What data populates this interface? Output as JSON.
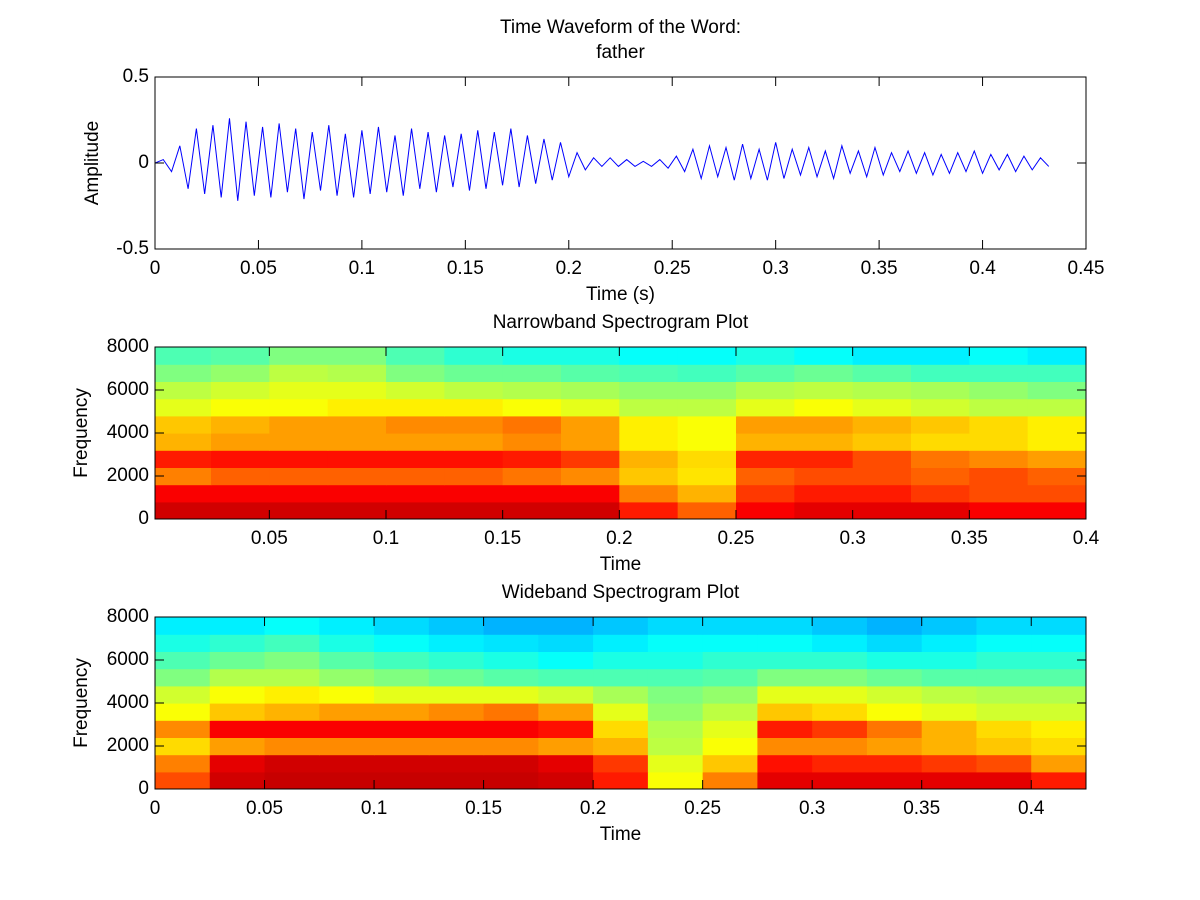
{
  "chart_data": [
    {
      "type": "line",
      "title": [
        "Time Waveform of the Word:",
        "father"
      ],
      "x_label": "Time (s)",
      "y_label": "Amplitude",
      "color": "#0000ff",
      "x": [
        0,
        0.004,
        0.008,
        0.012,
        0.016,
        0.02,
        0.024,
        0.028,
        0.032,
        0.036,
        0.04,
        0.044,
        0.048,
        0.052,
        0.056,
        0.06,
        0.064,
        0.068,
        0.072,
        0.076,
        0.08,
        0.084,
        0.088,
        0.092,
        0.096,
        0.1,
        0.104,
        0.108,
        0.112,
        0.116,
        0.12,
        0.124,
        0.128,
        0.132,
        0.136,
        0.14,
        0.144,
        0.148,
        0.152,
        0.156,
        0.16,
        0.164,
        0.168,
        0.172,
        0.176,
        0.18,
        0.184,
        0.188,
        0.192,
        0.196,
        0.2,
        0.204,
        0.208,
        0.212,
        0.216,
        0.22,
        0.224,
        0.228,
        0.232,
        0.236,
        0.24,
        0.244,
        0.248,
        0.252,
        0.256,
        0.26,
        0.264,
        0.268,
        0.272,
        0.276,
        0.28,
        0.284,
        0.288,
        0.292,
        0.296,
        0.3,
        0.304,
        0.308,
        0.312,
        0.316,
        0.32,
        0.324,
        0.328,
        0.332,
        0.336,
        0.34,
        0.344,
        0.348,
        0.352,
        0.356,
        0.36,
        0.364,
        0.368,
        0.372,
        0.376,
        0.38,
        0.384,
        0.388,
        0.392,
        0.396,
        0.4,
        0.404,
        0.408,
        0.412,
        0.416,
        0.42,
        0.424,
        0.428,
        0.432
      ],
      "values": [
        0,
        0.02,
        -0.05,
        0.1,
        -0.15,
        0.2,
        -0.18,
        0.22,
        -0.2,
        0.26,
        -0.22,
        0.24,
        -0.19,
        0.21,
        -0.2,
        0.23,
        -0.17,
        0.2,
        -0.21,
        0.18,
        -0.16,
        0.22,
        -0.19,
        0.17,
        -0.2,
        0.19,
        -0.18,
        0.21,
        -0.17,
        0.16,
        -0.19,
        0.2,
        -0.15,
        0.18,
        -0.17,
        0.16,
        -0.14,
        0.17,
        -0.16,
        0.19,
        -0.15,
        0.18,
        -0.13,
        0.2,
        -0.14,
        0.16,
        -0.12,
        0.14,
        -0.1,
        0.12,
        -0.08,
        0.06,
        -0.04,
        0.03,
        -0.02,
        0.03,
        -0.02,
        0.02,
        -0.02,
        0.01,
        -0.02,
        0.02,
        -0.03,
        0.04,
        -0.05,
        0.08,
        -0.09,
        0.1,
        -0.08,
        0.09,
        -0.1,
        0.11,
        -0.09,
        0.08,
        -0.1,
        0.12,
        -0.09,
        0.08,
        -0.07,
        0.09,
        -0.08,
        0.07,
        -0.09,
        0.1,
        -0.06,
        0.07,
        -0.08,
        0.09,
        -0.07,
        0.06,
        -0.05,
        0.07,
        -0.06,
        0.06,
        -0.07,
        0.05,
        -0.06,
        0.06,
        -0.05,
        0.07,
        -0.06,
        0.05,
        -0.04,
        0.05,
        -0.05,
        0.04,
        -0.04,
        0.03,
        -0.02
      ],
      "xlim": [
        0,
        0.45
      ],
      "xticks": [
        0,
        0.05,
        0.1,
        0.15,
        0.2,
        0.25,
        0.3,
        0.35,
        0.4,
        0.45
      ],
      "ylim": [
        -0.5,
        0.5
      ],
      "yticks": [
        -0.5,
        0,
        0.5
      ]
    },
    {
      "type": "heatmap",
      "title": [
        "Narrowband Spectrogram Plot"
      ],
      "x_label": "Time",
      "y_label": "Frequency",
      "colormap": "jet",
      "zlim": [
        0,
        1
      ],
      "xbins": [
        0,
        0.025,
        0.05,
        0.075,
        0.1,
        0.125,
        0.15,
        0.175,
        0.2,
        0.225,
        0.25,
        0.275,
        0.3,
        0.325,
        0.35,
        0.375,
        0.4
      ],
      "ybins": [
        0,
        800,
        1600,
        2400,
        3200,
        4000,
        4800,
        5600,
        6400,
        7200,
        8000
      ],
      "z": [
        [
          0.92,
          0.92,
          0.92,
          0.92,
          0.92,
          0.92,
          0.92,
          0.92,
          0.85,
          0.78,
          0.88,
          0.9,
          0.9,
          0.9,
          0.88,
          0.88
        ],
        [
          0.88,
          0.88,
          0.88,
          0.88,
          0.88,
          0.88,
          0.88,
          0.88,
          0.75,
          0.7,
          0.82,
          0.85,
          0.85,
          0.82,
          0.8,
          0.8
        ],
        [
          0.75,
          0.78,
          0.78,
          0.78,
          0.78,
          0.78,
          0.76,
          0.74,
          0.68,
          0.65,
          0.78,
          0.8,
          0.8,
          0.78,
          0.8,
          0.78
        ],
        [
          0.85,
          0.86,
          0.86,
          0.86,
          0.86,
          0.86,
          0.85,
          0.82,
          0.7,
          0.66,
          0.84,
          0.84,
          0.8,
          0.76,
          0.74,
          0.72
        ],
        [
          0.7,
          0.72,
          0.72,
          0.72,
          0.72,
          0.72,
          0.74,
          0.72,
          0.64,
          0.62,
          0.7,
          0.7,
          0.68,
          0.66,
          0.66,
          0.64
        ],
        [
          0.68,
          0.7,
          0.72,
          0.72,
          0.74,
          0.74,
          0.76,
          0.72,
          0.64,
          0.62,
          0.72,
          0.72,
          0.7,
          0.68,
          0.66,
          0.64
        ],
        [
          0.6,
          0.62,
          0.62,
          0.64,
          0.64,
          0.64,
          0.62,
          0.6,
          0.56,
          0.56,
          0.6,
          0.62,
          0.6,
          0.58,
          0.56,
          0.56
        ],
        [
          0.56,
          0.58,
          0.6,
          0.6,
          0.58,
          0.56,
          0.55,
          0.54,
          0.52,
          0.52,
          0.55,
          0.56,
          0.55,
          0.54,
          0.52,
          0.5
        ],
        [
          0.5,
          0.52,
          0.56,
          0.55,
          0.5,
          0.48,
          0.48,
          0.46,
          0.45,
          0.44,
          0.46,
          0.48,
          0.46,
          0.44,
          0.44,
          0.44
        ],
        [
          0.45,
          0.46,
          0.5,
          0.5,
          0.45,
          0.42,
          0.4,
          0.4,
          0.38,
          0.38,
          0.4,
          0.38,
          0.36,
          0.36,
          0.38,
          0.36
        ]
      ],
      "xlim": [
        0.001,
        0.4
      ],
      "xticks": [
        0.05,
        0.1,
        0.15,
        0.2,
        0.25,
        0.3,
        0.35,
        0.4
      ],
      "ylim": [
        0,
        8000
      ],
      "yticks": [
        0,
        2000,
        4000,
        6000,
        8000
      ]
    },
    {
      "type": "heatmap",
      "title": [
        "Wideband Spectrogram Plot"
      ],
      "x_label": "Time",
      "y_label": "Frequency",
      "colormap": "jet",
      "zlim": [
        0,
        1
      ],
      "xbins": [
        0,
        0.025,
        0.05,
        0.075,
        0.1,
        0.125,
        0.15,
        0.175,
        0.2,
        0.225,
        0.25,
        0.275,
        0.3,
        0.325,
        0.35,
        0.375,
        0.4,
        0.425
      ],
      "ybins": [
        0,
        800,
        1600,
        2400,
        3200,
        4000,
        4800,
        5600,
        6400,
        7200,
        8000
      ],
      "z": [
        [
          0.8,
          0.92,
          0.93,
          0.93,
          0.93,
          0.93,
          0.93,
          0.92,
          0.85,
          0.62,
          0.75,
          0.9,
          0.9,
          0.9,
          0.9,
          0.9,
          0.85
        ],
        [
          0.75,
          0.9,
          0.92,
          0.92,
          0.92,
          0.92,
          0.92,
          0.9,
          0.82,
          0.6,
          0.68,
          0.86,
          0.84,
          0.84,
          0.82,
          0.8,
          0.72
        ],
        [
          0.66,
          0.72,
          0.74,
          0.74,
          0.74,
          0.74,
          0.74,
          0.72,
          0.7,
          0.56,
          0.62,
          0.74,
          0.74,
          0.72,
          0.7,
          0.68,
          0.66
        ],
        [
          0.74,
          0.88,
          0.88,
          0.88,
          0.88,
          0.88,
          0.88,
          0.86,
          0.66,
          0.55,
          0.6,
          0.85,
          0.82,
          0.76,
          0.7,
          0.66,
          0.64
        ],
        [
          0.62,
          0.68,
          0.7,
          0.72,
          0.72,
          0.74,
          0.76,
          0.72,
          0.6,
          0.52,
          0.56,
          0.68,
          0.66,
          0.62,
          0.6,
          0.58,
          0.58
        ],
        [
          0.58,
          0.62,
          0.64,
          0.62,
          0.6,
          0.6,
          0.6,
          0.58,
          0.54,
          0.5,
          0.52,
          0.6,
          0.6,
          0.58,
          0.56,
          0.55,
          0.55
        ],
        [
          0.5,
          0.55,
          0.55,
          0.52,
          0.5,
          0.48,
          0.46,
          0.45,
          0.45,
          0.45,
          0.46,
          0.5,
          0.5,
          0.48,
          0.46,
          0.46,
          0.46
        ],
        [
          0.45,
          0.48,
          0.5,
          0.46,
          0.44,
          0.42,
          0.4,
          0.38,
          0.4,
          0.4,
          0.42,
          0.42,
          0.42,
          0.4,
          0.4,
          0.42,
          0.42
        ],
        [
          0.4,
          0.42,
          0.44,
          0.4,
          0.38,
          0.36,
          0.35,
          0.34,
          0.36,
          0.38,
          0.38,
          0.38,
          0.36,
          0.34,
          0.36,
          0.38,
          0.38
        ],
        [
          0.36,
          0.36,
          0.38,
          0.36,
          0.34,
          0.32,
          0.3,
          0.3,
          0.32,
          0.34,
          0.34,
          0.34,
          0.32,
          0.3,
          0.32,
          0.34,
          0.34
        ]
      ],
      "xlim": [
        0,
        0.425
      ],
      "xticks": [
        0,
        0.05,
        0.1,
        0.15,
        0.2,
        0.25,
        0.3,
        0.35,
        0.4
      ],
      "ylim": [
        0,
        8000
      ],
      "yticks": [
        0,
        2000,
        4000,
        6000,
        8000
      ]
    }
  ]
}
